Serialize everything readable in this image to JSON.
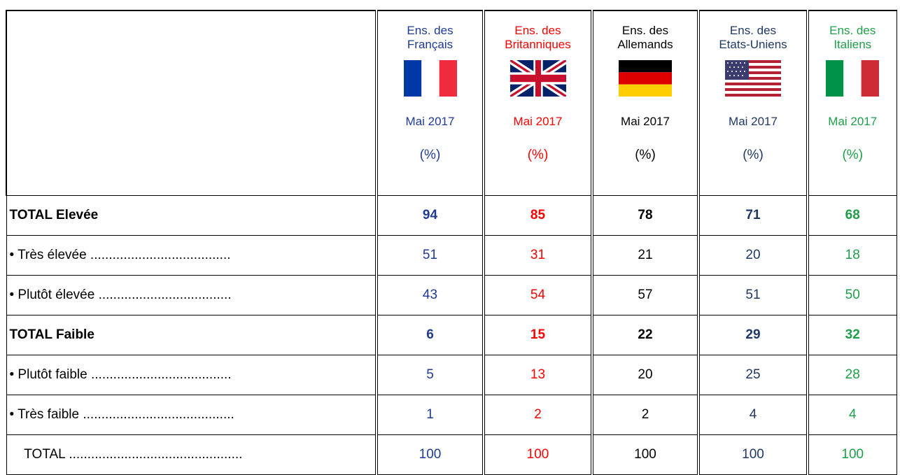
{
  "table": {
    "columns": [
      {
        "line1": "Ens. des",
        "line2": "Français",
        "date": "Mai 2017",
        "unit": "(%)",
        "color": "#1f3a93"
      },
      {
        "line1": "Ens. des",
        "line2": "Britanniques",
        "date": "Mai 2017",
        "unit": "(%)",
        "color": "#ff0000"
      },
      {
        "line1": "Ens. des",
        "line2": "Allemands",
        "date": "Mai 2017",
        "unit": "(%)",
        "color": "#000000"
      },
      {
        "line1": "Ens. des",
        "line2": "Etats-Uniens",
        "date": "Mai 2017",
        "unit": "(%)",
        "color": "#203864"
      },
      {
        "line1": "Ens. des",
        "line2": "Italiens",
        "date": "Mai 2017",
        "unit": "(%)",
        "color": "#1e9e48"
      }
    ],
    "rows": [
      {
        "label": "TOTAL Elevée",
        "bold": true,
        "values": [
          94,
          85,
          78,
          71,
          68
        ]
      },
      {
        "label": "• Très élevée ......................................",
        "bold": false,
        "values": [
          51,
          31,
          21,
          20,
          18
        ]
      },
      {
        "label": "• Plutôt élevée ....................................",
        "bold": false,
        "values": [
          43,
          54,
          57,
          51,
          50
        ]
      },
      {
        "label": "TOTAL Faible",
        "bold": true,
        "values": [
          6,
          15,
          22,
          29,
          32
        ]
      },
      {
        "label": "• Plutôt faible ......................................",
        "bold": false,
        "values": [
          5,
          13,
          20,
          25,
          28
        ]
      },
      {
        "label": "• Très faible .........................................",
        "bold": false,
        "values": [
          1,
          2,
          2,
          4,
          4
        ]
      },
      {
        "label": "    TOTAL ...............................................",
        "bold": false,
        "values": [
          100,
          100,
          100,
          100,
          100
        ]
      }
    ]
  }
}
